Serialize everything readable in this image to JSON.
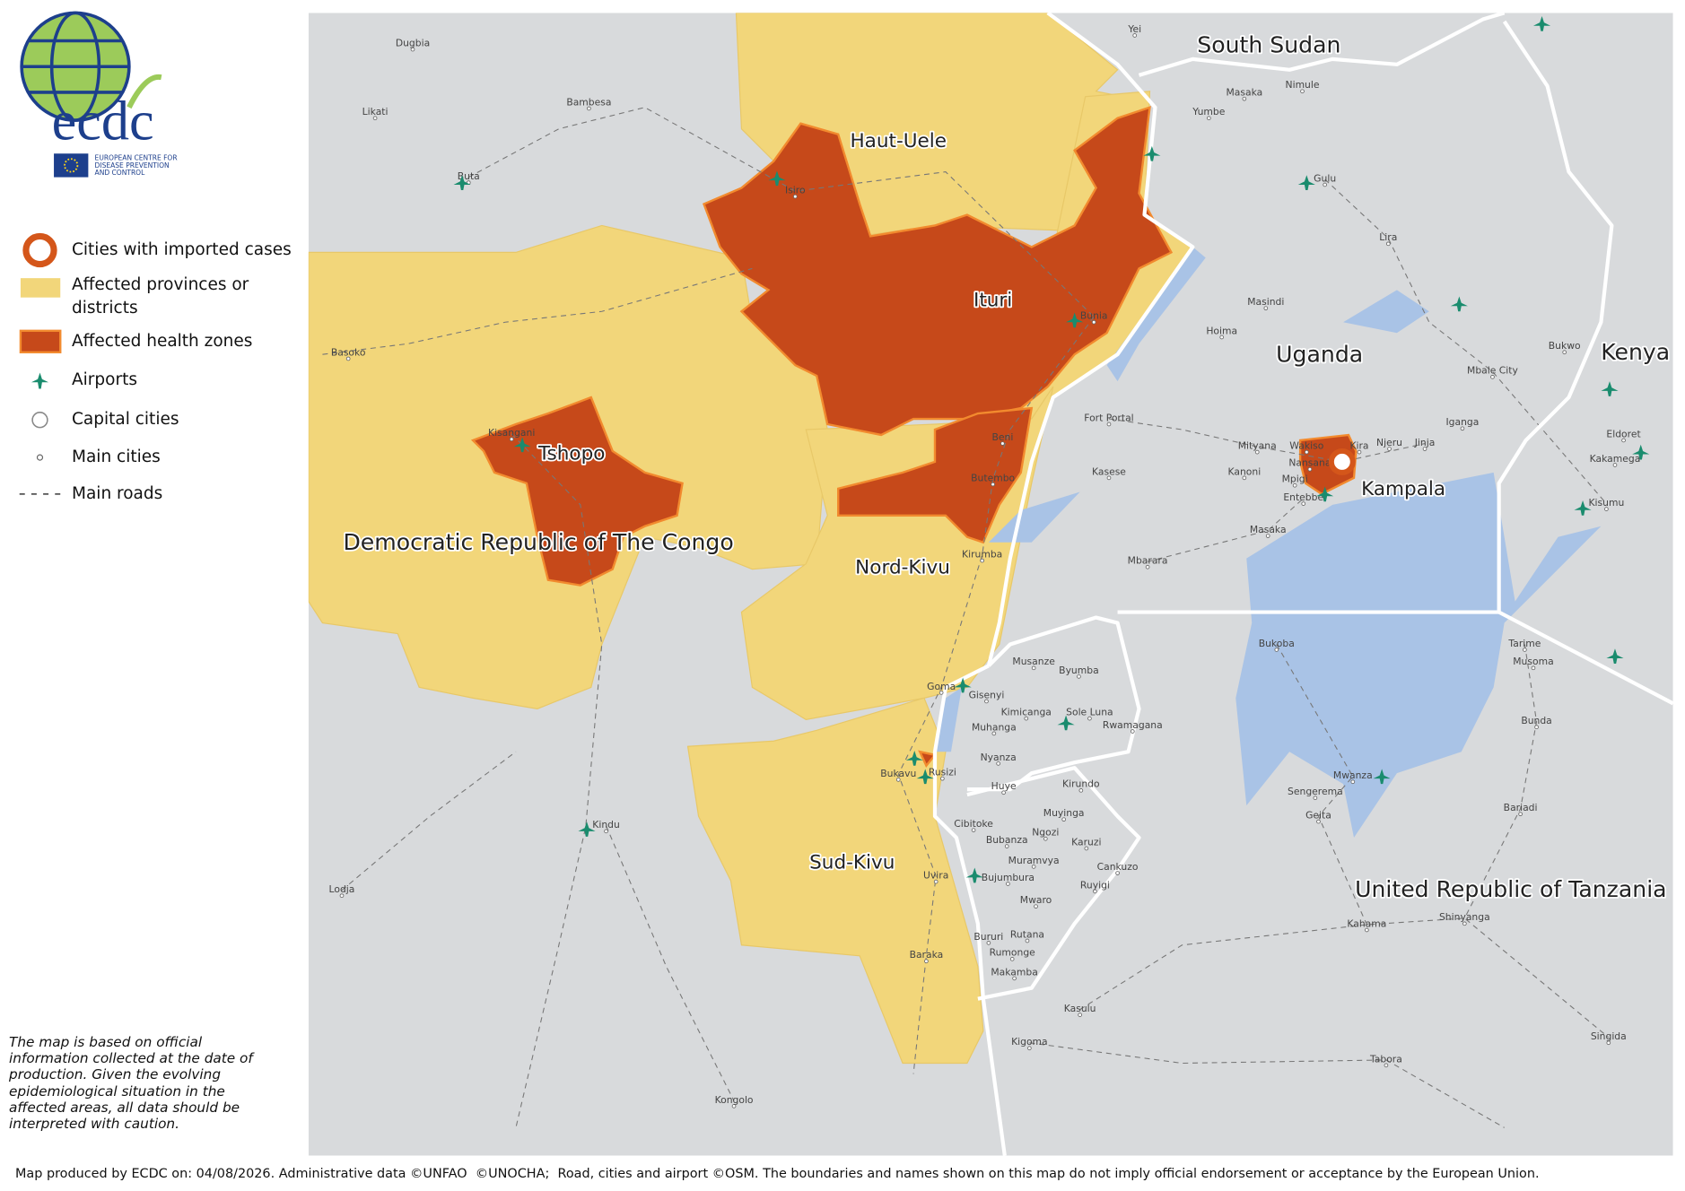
{
  "logo": {
    "name": "ecdc",
    "caption": [
      "EUROPEAN CENTRE FOR",
      "DISEASE PREVENTION",
      "AND CONTROL"
    ]
  },
  "legend": [
    "Cities with imported cases",
    "Affected provinces or districts",
    "Affected health zones",
    "Airports",
    "Capital cities",
    "Main cities",
    "Main roads"
  ],
  "disclaimer": "The map is based on official information collected at the date of production. Given the evolving epidemiological situation in the affected areas, all data should be interpreted with caution.",
  "footer": "Map produced by ECDC on: 04/08/2026. Administrative data ©UNFAO  ©UNOCHA;  Road, cities and airport ©OSM. The boundaries and names shown on this map do not imply official endorsement or acceptance by the European Union.",
  "map": {
    "countries": [
      "South Sudan",
      "Uganda",
      "Kenya",
      "United Republic of Tanzania",
      "Democratic Republic of The Congo"
    ],
    "regions": [
      "Haut-Uele",
      "Ituri",
      "Tshopo",
      "Nord-Kivu",
      "Sud-Kivu",
      "Kampala"
    ],
    "cities": [
      "Dugbia",
      "Yei",
      "Bambesa",
      "Likati",
      "Buta",
      "Isiro",
      "Nimule",
      "Masaka",
      "Yumbe",
      "Gulu",
      "Lira",
      "Masindi",
      "Hoima",
      "Bunia",
      "Basoko",
      "Kisangani",
      "Fort Portal",
      "Beni",
      "Butembo",
      "Kasese",
      "Mityana",
      "Wakiso",
      "Kira",
      "Njeru",
      "Jinja",
      "Iganga",
      "Mbale City",
      "Bukwo",
      "Eldoret",
      "Kakamega",
      "Kisumu",
      "Kanoni",
      "Mpigi",
      "Nansana",
      "Entebbe",
      "Masaka",
      "Mbarara",
      "Kirumba",
      "Goma",
      "Gisenyi",
      "Musanze",
      "Byumba",
      "Kimicanga",
      "Sole Luna",
      "Rwamagana",
      "Muhanga",
      "Nyanza",
      "Bukavu",
      "Rusizi",
      "Huye",
      "Kirundo",
      "Cibitoke",
      "Muyinga",
      "Ngozi",
      "Karuzi",
      "Bubanza",
      "Muramvya",
      "Cankuzo",
      "Uvira",
      "Bujumbura",
      "Ruyigi",
      "Mwaro",
      "Bururi",
      "Rutana",
      "Rumonge",
      "Makamba",
      "Baraka",
      "Kasulu",
      "Kigoma",
      "Kindu",
      "Lodja",
      "Kongolo",
      "Kahama",
      "Shinyanga",
      "Singida",
      "Tabora",
      "Bukoba",
      "Tarime",
      "Musoma",
      "Bunda",
      "Mwanza",
      "Sengerema",
      "Geita",
      "Bariadi"
    ]
  }
}
